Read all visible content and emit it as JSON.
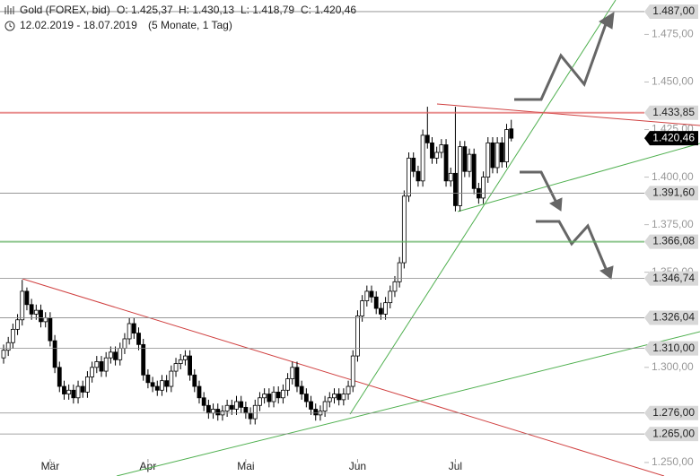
{
  "header": {
    "instrument": "Gold (FOREX, bid)",
    "open": "O: 1.425,37",
    "high": "H: 1.430,13",
    "low": "L: 1.418,79",
    "close": "C: 1.420,46",
    "range": "12.02.2019 - 18.07.2019",
    "period": "(5 Monate, 1 Tag)"
  },
  "chart_data": {
    "type": "candlestick",
    "colors": {
      "up": "#ffffff",
      "down": "#000000"
    },
    "open": [
      1305,
      1309,
      1313,
      1320,
      1325,
      1340,
      1333,
      1328,
      1330,
      1324,
      1326,
      1314,
      1300,
      1290,
      1286,
      1288,
      1284,
      1290,
      1287,
      1295,
      1300,
      1303,
      1298,
      1305,
      1308,
      1304,
      1310,
      1315,
      1323,
      1318,
      1312,
      1296,
      1292,
      1290,
      1288,
      1293,
      1290,
      1298,
      1302,
      1304,
      1306,
      1296,
      1290,
      1284,
      1280,
      1276,
      1278,
      1275,
      1277,
      1280,
      1278,
      1282,
      1279,
      1276,
      1273,
      1280,
      1284,
      1286,
      1282,
      1287,
      1284,
      1288,
      1294,
      1300,
      1290,
      1286,
      1282,
      1278,
      1275,
      1277,
      1282,
      1284,
      1286,
      1283,
      1286,
      1290,
      1306,
      1327,
      1335,
      1340,
      1337,
      1331,
      1328,
      1334,
      1340,
      1345,
      1355,
      1390,
      1410,
      1403,
      1398,
      1422,
      1418,
      1410,
      1413,
      1417,
      1398,
      1402,
      1385,
      1416,
      1403,
      1412,
      1394,
      1389,
      1400,
      1418,
      1405,
      1418,
      1408,
      1425.37
    ],
    "high": [
      1312,
      1316,
      1323,
      1328,
      1346,
      1342,
      1336,
      1333,
      1333,
      1329,
      1329,
      1317,
      1303,
      1293,
      1291,
      1291,
      1293,
      1293,
      1298,
      1303,
      1306,
      1306,
      1308,
      1311,
      1311,
      1313,
      1318,
      1326,
      1326,
      1321,
      1315,
      1299,
      1295,
      1293,
      1296,
      1296,
      1301,
      1305,
      1307,
      1309,
      1309,
      1299,
      1293,
      1287,
      1283,
      1281,
      1281,
      1280,
      1283,
      1283,
      1285,
      1285,
      1282,
      1279,
      1283,
      1287,
      1289,
      1289,
      1290,
      1290,
      1291,
      1297,
      1303,
      1303,
      1293,
      1289,
      1285,
      1281,
      1280,
      1285,
      1287,
      1289,
      1289,
      1289,
      1293,
      1309,
      1330,
      1338,
      1343,
      1343,
      1340,
      1334,
      1337,
      1343,
      1348,
      1358,
      1393,
      1413,
      1413,
      1406,
      1425,
      1437,
      1421,
      1416,
      1420,
      1420,
      1405,
      1437,
      1419,
      1419,
      1415,
      1415,
      1397,
      1403,
      1421,
      1421,
      1421,
      1421,
      1428,
      1430.13
    ],
    "low": [
      1302,
      1306,
      1310,
      1317,
      1322,
      1330,
      1325,
      1325,
      1321,
      1321,
      1311,
      1297,
      1287,
      1283,
      1283,
      1281,
      1281,
      1284,
      1284,
      1292,
      1297,
      1295,
      1295,
      1302,
      1301,
      1301,
      1307,
      1312,
      1315,
      1309,
      1293,
      1289,
      1287,
      1285,
      1285,
      1287,
      1287,
      1295,
      1299,
      1301,
      1293,
      1287,
      1281,
      1277,
      1273,
      1273,
      1272,
      1272,
      1274,
      1275,
      1275,
      1276,
      1273,
      1270,
      1270,
      1277,
      1281,
      1279,
      1279,
      1281,
      1281,
      1285,
      1291,
      1287,
      1283,
      1279,
      1275,
      1272,
      1272,
      1274,
      1279,
      1281,
      1280,
      1280,
      1283,
      1287,
      1303,
      1324,
      1332,
      1334,
      1328,
      1325,
      1325,
      1331,
      1337,
      1342,
      1352,
      1387,
      1400,
      1395,
      1395,
      1415,
      1407,
      1407,
      1410,
      1395,
      1395,
      1382,
      1382,
      1400,
      1400,
      1391,
      1386,
      1386,
      1397,
      1402,
      1402,
      1405,
      1405,
      1418.79
    ],
    "close": [
      1309,
      1313,
      1320,
      1325,
      1340,
      1333,
      1328,
      1330,
      1324,
      1326,
      1314,
      1300,
      1290,
      1286,
      1288,
      1284,
      1290,
      1287,
      1295,
      1300,
      1303,
      1298,
      1305,
      1308,
      1304,
      1310,
      1315,
      1323,
      1318,
      1312,
      1296,
      1292,
      1290,
      1288,
      1293,
      1290,
      1298,
      1302,
      1304,
      1306,
      1296,
      1290,
      1284,
      1280,
      1276,
      1278,
      1275,
      1277,
      1280,
      1278,
      1282,
      1279,
      1276,
      1273,
      1280,
      1284,
      1286,
      1282,
      1287,
      1284,
      1288,
      1294,
      1300,
      1290,
      1286,
      1282,
      1278,
      1275,
      1277,
      1282,
      1284,
      1286,
      1283,
      1286,
      1290,
      1306,
      1327,
      1335,
      1340,
      1337,
      1331,
      1328,
      1334,
      1340,
      1345,
      1355,
      1390,
      1410,
      1403,
      1398,
      1422,
      1418,
      1410,
      1413,
      1417,
      1398,
      1402,
      1385,
      1416,
      1403,
      1412,
      1394,
      1389,
      1400,
      1418,
      1405,
      1418,
      1408,
      1425,
      1420.46
    ],
    "ylim": [
      1242.9,
      1493.1
    ],
    "yticks": [
      {
        "value": 1475,
        "label": "1.475,00"
      },
      {
        "value": 1450,
        "label": "1.450,00"
      },
      {
        "value": 1425,
        "label": "1.425,00"
      },
      {
        "value": 1400,
        "label": "1.400,00"
      },
      {
        "value": 1375,
        "label": "1.375,00"
      },
      {
        "value": 1350,
        "label": "1.350,00"
      },
      {
        "value": 1300,
        "label": "1.300,00"
      },
      {
        "value": 1250,
        "label": "1.250,00"
      }
    ],
    "xticks": [
      {
        "value": 10,
        "label": "Mär"
      },
      {
        "value": 31,
        "label": "Apr"
      },
      {
        "value": 52,
        "label": "Mai"
      },
      {
        "value": 76,
        "label": "Jun"
      },
      {
        "value": 97,
        "label": "Jul"
      }
    ],
    "levels": [
      {
        "value": 1487,
        "label": "1.487,00",
        "color": "#888888"
      },
      {
        "value": 1433.85,
        "label": "1.433,85",
        "color": "#e06060"
      },
      {
        "value": 1420.46,
        "label": "1.420,46",
        "color": "#000000"
      },
      {
        "value": 1391.6,
        "label": "1.391,60",
        "color": "#888888"
      },
      {
        "value": 1366.08,
        "label": "1.366,08",
        "color": "#60b060"
      },
      {
        "value": 1346.74,
        "label": "1.346,74",
        "color": "#888888"
      },
      {
        "value": 1326.04,
        "label": "1.326,04",
        "color": "#888888"
      },
      {
        "value": 1310,
        "label": "1.310,00",
        "color": "#888888"
      },
      {
        "value": 1276,
        "label": "1.276,00",
        "color": "#888888"
      },
      {
        "value": 1265,
        "label": "1.265,00",
        "color": "#888888"
      }
    ]
  }
}
